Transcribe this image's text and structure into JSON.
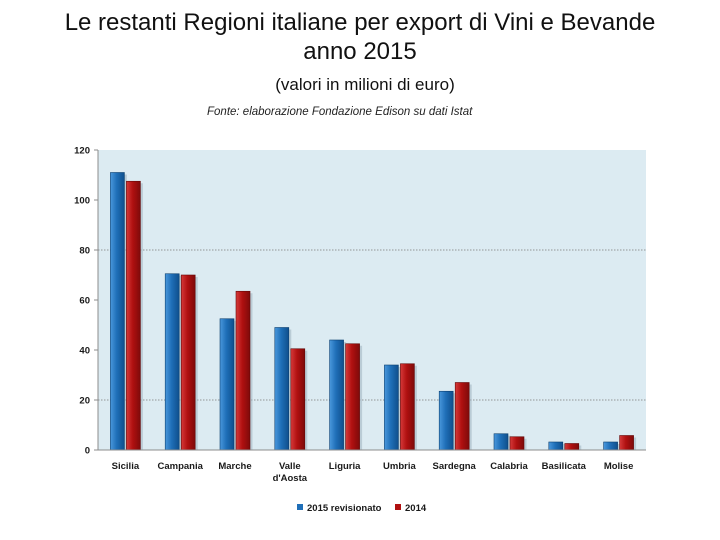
{
  "page": {
    "title_line1": "Le restanti Regioni italiane per export di Vini e Bevande",
    "title_line2": "anno 2015",
    "subtitle": "(valori in milioni di euro)",
    "source": "Fonte: elaborazione Fondazione Edison su dati Istat"
  },
  "chart_data": {
    "type": "bar",
    "title": "Le restanti Regioni italiane per export di Vini e Bevande anno 2015",
    "subtitle": "(valori in milioni di euro)",
    "xlabel": "",
    "ylabel": "",
    "ylim": [
      0,
      120
    ],
    "yticks": [
      0,
      20,
      40,
      60,
      80,
      100,
      120
    ],
    "gridlines": [
      20,
      80
    ],
    "categories": [
      [
        "Sicilia"
      ],
      [
        "Campania"
      ],
      [
        "Marche"
      ],
      [
        "Valle",
        "d'Aosta"
      ],
      [
        "Liguria"
      ],
      [
        "Umbria"
      ],
      [
        "Sardegna"
      ],
      [
        "Calabria"
      ],
      [
        "Basilicata"
      ],
      [
        "Molise"
      ]
    ],
    "series": [
      {
        "name": "2015 revisionato",
        "color": "#1f6fb8",
        "values": [
          111,
          70.5,
          52.5,
          49,
          44,
          34,
          23.5,
          6.5,
          3.2,
          3.2
        ]
      },
      {
        "name": "2014",
        "color": "#b01010",
        "values": [
          107.5,
          70,
          63.5,
          40.5,
          42.5,
          34.5,
          27,
          5.3,
          2.6,
          5.8
        ]
      }
    ],
    "legend_position": "bottom",
    "background_color": "#dcebf2"
  }
}
